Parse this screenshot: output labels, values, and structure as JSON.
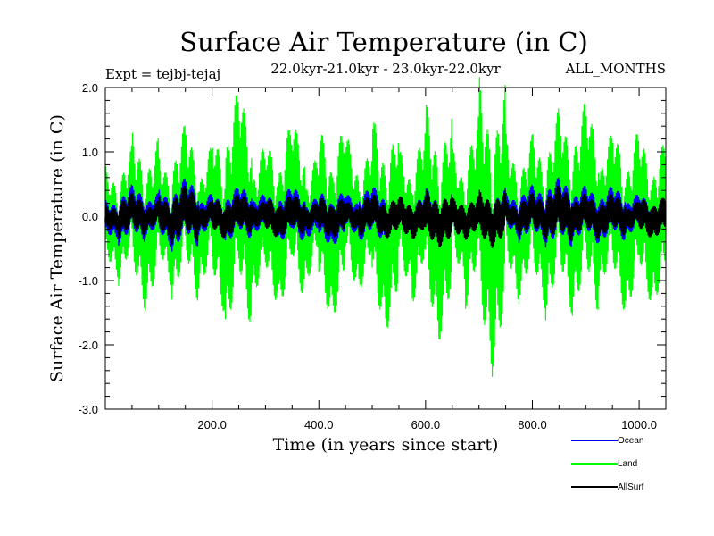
{
  "chart_data": {
    "type": "line",
    "title": "Surface Air Temperature (in C)",
    "expt_label": "Expt = tejbj-tejaj",
    "period_label": "22.0kyr-21.0kyr - 23.0kyr-22.0kyr",
    "season_label": "ALL_MONTHS",
    "xlabel": "Time (in years since start)",
    "ylabel": "Surface Air Temperature (in C)",
    "xlim": [
      0,
      1050
    ],
    "ylim": [
      -3.0,
      2.0
    ],
    "x_ticks": [
      200,
      400,
      600,
      800,
      1000
    ],
    "x_tick_labels": [
      "200.0",
      "400.0",
      "600.0",
      "800.0",
      "1000.0"
    ],
    "y_ticks": [
      -3.0,
      -2.0,
      -1.0,
      0.0,
      1.0,
      2.0
    ],
    "y_tick_labels": [
      "-3.0",
      "-2.0",
      "-1.0",
      "0.0",
      "1.0",
      "2.0"
    ],
    "series": [
      {
        "name": "Land",
        "color": "#00ff00",
        "sample_every_years": 25,
        "values": [
          0.3,
          -0.8,
          0.9,
          -1.2,
          0.6,
          -0.9,
          1.2,
          -1.0,
          0.8,
          -1.3,
          1.7,
          -1.1,
          0.7,
          -1.2,
          1.3,
          -0.9,
          0.8,
          -1.4,
          1.1,
          -1.0,
          0.9,
          -1.5,
          0.6,
          -1.0,
          1.2,
          -1.6,
          0.8,
          -0.9,
          1.3,
          -2.0,
          1.0,
          -1.1,
          0.9,
          -1.2,
          1.4,
          -1.0,
          1.5,
          -0.8,
          1.1,
          -1.3,
          0.9,
          -1.2,
          0.7
        ]
      },
      {
        "name": "Ocean",
        "color": "#0000ff",
        "sample_every_years": 25,
        "values": [
          0.0,
          -0.3,
          0.4,
          -0.2,
          0.3,
          -0.4,
          0.5,
          -0.2,
          0.3,
          -0.3,
          0.4,
          -0.1,
          0.3,
          -0.3,
          0.4,
          -0.3,
          0.2,
          -0.4,
          0.3,
          -0.2,
          0.4,
          -0.3,
          0.2,
          -0.3,
          0.3,
          -0.4,
          0.1,
          -0.3,
          0.2,
          -0.4,
          0.3,
          -0.2,
          0.4,
          -0.2,
          0.5,
          -0.2,
          0.4,
          -0.3,
          0.4,
          -0.2,
          0.3,
          -0.3,
          0.2
        ]
      },
      {
        "name": "AllSurf",
        "color": "#000000",
        "sample_every_years": 25,
        "values": [
          0.0,
          -0.2,
          0.3,
          -0.2,
          0.2,
          -0.3,
          0.4,
          -0.2,
          0.2,
          -0.3,
          0.3,
          -0.1,
          0.2,
          -0.3,
          0.3,
          -0.2,
          0.2,
          -0.3,
          0.2,
          -0.2,
          0.3,
          -0.3,
          0.2,
          -0.3,
          0.2,
          -0.4,
          0.1,
          -0.3,
          0.2,
          -0.4,
          0.2,
          -0.2,
          0.3,
          -0.2,
          0.4,
          -0.2,
          0.3,
          -0.3,
          0.3,
          -0.2,
          0.2,
          -0.3,
          0.2
        ]
      }
    ],
    "legend": [
      {
        "name": "Ocean",
        "color": "#0000ff"
      },
      {
        "name": "Land",
        "color": "#00ff00"
      },
      {
        "name": "AllSurf",
        "color": "#000000"
      }
    ],
    "legend_position": "bottom-right"
  }
}
